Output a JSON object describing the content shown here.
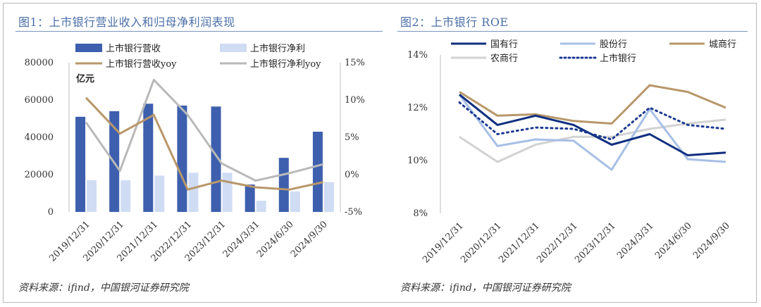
{
  "panels": {
    "left": {
      "title": "图1：上市银行营业收入和归母净利润表现",
      "source": "资料来源：ifind，中国银河证券研究院"
    },
    "right": {
      "title": "图2：上市银行 ROE",
      "source": "资料来源：ifind，中国银河证券研究院"
    }
  },
  "colors": {
    "rev_bar": "#3d5fae",
    "profit_bar": "#cfdcf3",
    "rev_yoy": "#b8976a",
    "profit_yoy": "#b9b9b9",
    "state": "#0f2f7e",
    "joint": "#a7bfe6",
    "city": "#b8976a",
    "rural": "#d2d2d2",
    "all": "#1c3a92",
    "title": "#4a6fa8"
  },
  "chart_data": [
    {
      "type": "bar",
      "unit_label": "亿元",
      "categories": [
        "2019/12/31",
        "2020/12/31",
        "2021/12/31",
        "2022/12/31",
        "2023/12/31",
        "2024/3/31",
        "2024/6/30",
        "2024/9/30"
      ],
      "y_ticks": [
        "0",
        "20000",
        "40000",
        "60000",
        "80000"
      ],
      "y2_ticks": [
        "-5%",
        "0%",
        "5%",
        "10%",
        "15%"
      ],
      "ylim": [
        0,
        80000
      ],
      "y2lim": [
        -5,
        15
      ],
      "series": [
        {
          "name": "上市银行营收",
          "type": "bar",
          "axis": "left",
          "values": [
            51000,
            54000,
            58000,
            57000,
            56500,
            14700,
            29000,
            43000
          ]
        },
        {
          "name": "上市银行净利",
          "type": "bar",
          "axis": "left",
          "values": [
            17000,
            17000,
            19500,
            21000,
            21000,
            6000,
            11000,
            16000
          ]
        },
        {
          "name": "上市银行营收yoy",
          "type": "line",
          "axis": "right",
          "values": [
            10.3,
            5.5,
            8.0,
            -2.0,
            -0.8,
            -1.7,
            -2.0,
            -1.0
          ]
        },
        {
          "name": "上市银行净利yoy",
          "type": "line",
          "axis": "right",
          "values": [
            7.0,
            0.5,
            12.7,
            8.0,
            1.5,
            -0.8,
            0.2,
            1.4
          ]
        }
      ]
    },
    {
      "type": "line",
      "categories": [
        "2019/12/31",
        "2020/12/31",
        "2021/12/31",
        "2022/12/31",
        "2023/12/31",
        "2024/3/31",
        "2024/6/30",
        "2024/9/30"
      ],
      "y_ticks": [
        "8%",
        "10%",
        "12%",
        "14%"
      ],
      "ylim": [
        8,
        14
      ],
      "series": [
        {
          "name": "国有行",
          "values": [
            12.5,
            11.35,
            11.7,
            11.35,
            10.6,
            11.0,
            10.2,
            10.3
          ]
        },
        {
          "name": "股份行",
          "values": [
            12.5,
            10.55,
            10.8,
            10.75,
            9.65,
            11.95,
            10.05,
            9.95
          ]
        },
        {
          "name": "城商行",
          "values": [
            12.6,
            11.7,
            11.75,
            11.5,
            11.4,
            12.85,
            12.6,
            12.0
          ]
        },
        {
          "name": "农商行",
          "values": [
            10.9,
            9.95,
            10.6,
            10.9,
            10.9,
            11.2,
            11.4,
            11.55
          ]
        },
        {
          "name": "上市银行",
          "values": [
            12.2,
            11.0,
            11.25,
            11.2,
            10.8,
            12.0,
            11.35,
            11.2
          ]
        }
      ]
    }
  ]
}
